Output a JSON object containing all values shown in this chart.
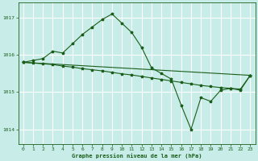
{
  "xlabel": "Graphe pression niveau de la mer (hPa)",
  "bg_color": "#c8ece8",
  "grid_color": "#ffffff",
  "line_color": "#1a5e1a",
  "marker": "*",
  "marker_size": 2.5,
  "ylim": [
    1013.6,
    1017.4
  ],
  "xlim": [
    -0.5,
    23.5
  ],
  "yticks": [
    1014,
    1015,
    1016,
    1017
  ],
  "xticks": [
    0,
    1,
    2,
    3,
    4,
    5,
    6,
    7,
    8,
    9,
    10,
    11,
    12,
    13,
    14,
    15,
    16,
    17,
    18,
    19,
    20,
    21,
    22,
    23
  ],
  "line1_x": [
    0,
    1,
    2,
    3,
    4,
    5,
    6,
    7,
    8,
    9,
    10,
    11,
    12,
    13,
    14,
    15,
    16,
    17,
    18,
    19,
    20,
    21,
    22,
    23
  ],
  "line1_y": [
    1015.8,
    1015.85,
    1015.9,
    1016.1,
    1016.05,
    1016.3,
    1016.55,
    1016.75,
    1016.95,
    1017.1,
    1016.85,
    1016.6,
    1016.2,
    1015.65,
    1015.5,
    1015.35,
    1014.65,
    1014.0,
    1014.85,
    1014.75,
    1015.05,
    1015.1,
    1015.05,
    1015.45
  ],
  "line2_x": [
    0,
    23
  ],
  "line2_y": [
    1015.8,
    1015.45
  ],
  "line3_x": [
    0,
    1,
    2,
    3,
    4,
    5,
    6,
    7,
    8,
    9,
    10,
    11,
    12,
    13,
    14,
    15,
    16,
    17,
    18,
    19,
    20,
    21,
    22,
    23
  ],
  "line3_y": [
    1015.8,
    1015.78,
    1015.76,
    1015.74,
    1015.7,
    1015.67,
    1015.63,
    1015.6,
    1015.57,
    1015.53,
    1015.49,
    1015.46,
    1015.42,
    1015.38,
    1015.34,
    1015.3,
    1015.26,
    1015.22,
    1015.18,
    1015.15,
    1015.12,
    1015.1,
    1015.08,
    1015.45
  ]
}
